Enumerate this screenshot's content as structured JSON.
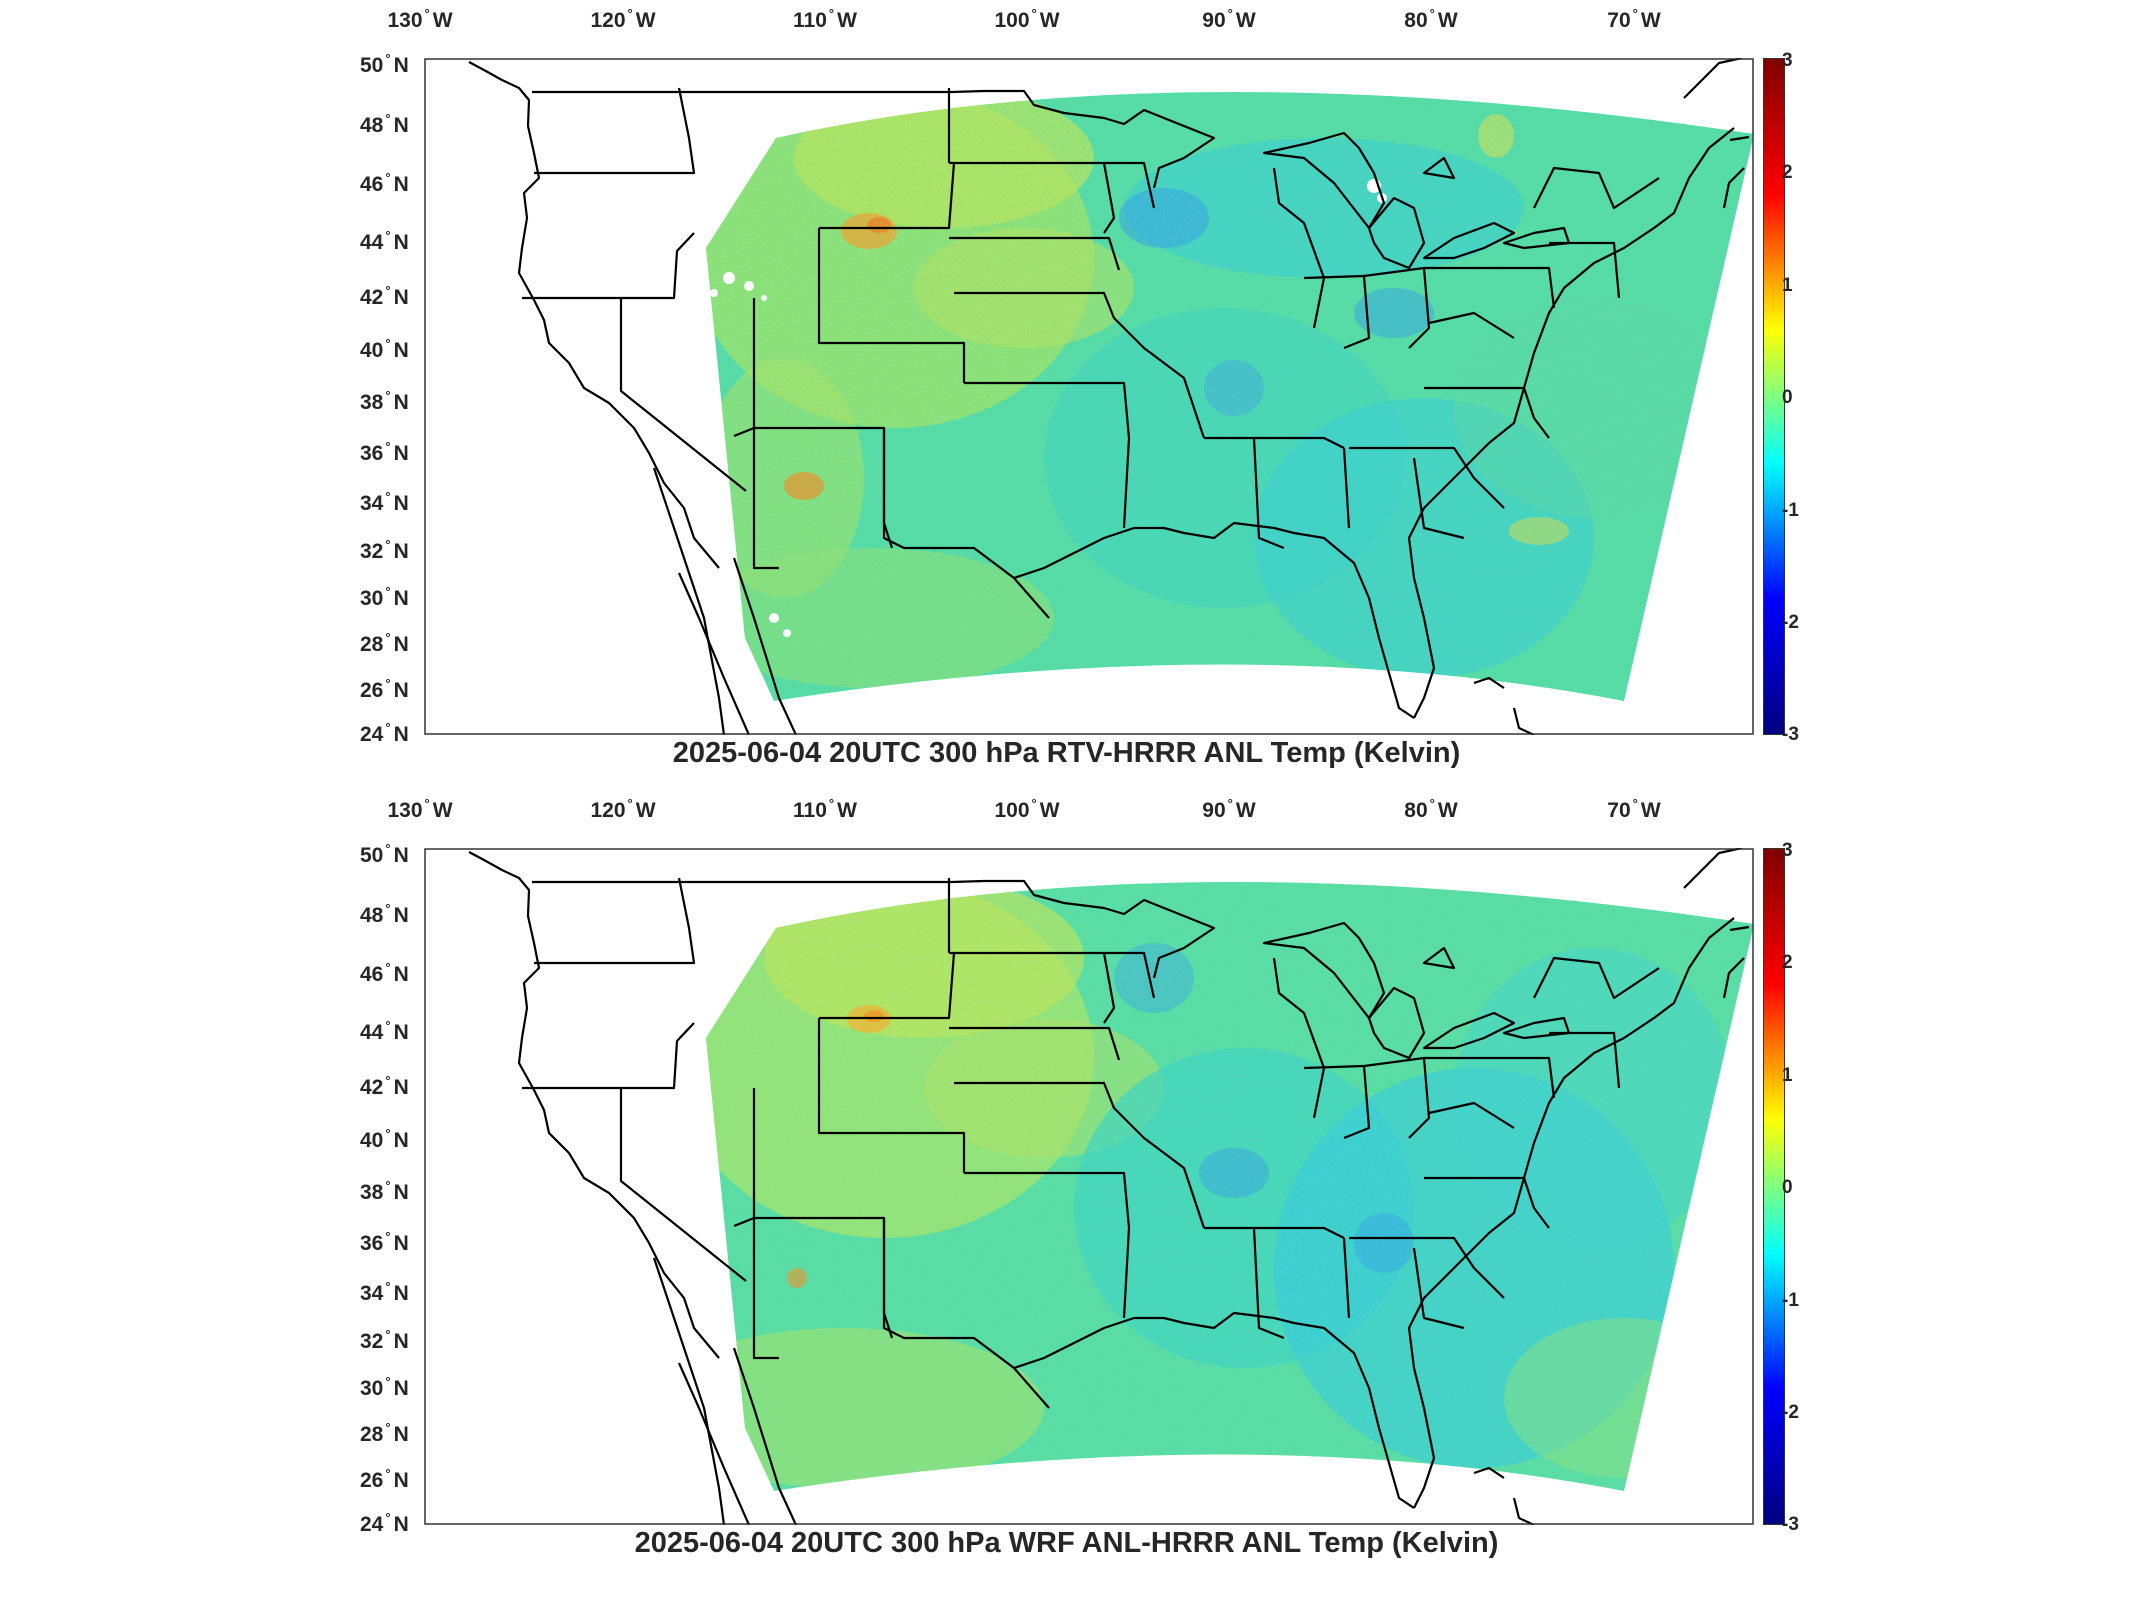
{
  "colors": {
    "ocean_background": "#ffffff",
    "state_lines": "#000000",
    "jet_colormap": [
      "#000080",
      "#0000ff",
      "#00ffff",
      "#ffff00",
      "#ff0000",
      "#800000"
    ]
  },
  "panels": [
    {
      "title": "2025-06-04 20UTC 300 hPa RTV-HRRR ANL Temp (Kelvin)",
      "lon_labels": [
        "130",
        "W",
        "120",
        "W",
        "110",
        "W",
        "100",
        "W",
        "90",
        "W",
        "80",
        "W",
        "70",
        "W"
      ],
      "lat_labels": [
        "50",
        "N",
        "48",
        "N",
        "46",
        "N",
        "44",
        "N",
        "42",
        "N",
        "40",
        "N",
        "38",
        "N",
        "36",
        "N",
        "34",
        "N",
        "32",
        "N",
        "30",
        "N",
        "28",
        "N",
        "26",
        "N",
        "24",
        "N"
      ],
      "colorbar": {
        "colormap": "jet",
        "ticks": [
          "3",
          "2",
          "1",
          "0",
          "-1",
          "-2",
          "-3"
        ],
        "range": [
          -3,
          3
        ]
      }
    },
    {
      "title": "2025-06-04 20UTC 300 hPa WRF ANL-HRRR ANL Temp (Kelvin)",
      "lon_labels": [
        "130",
        "W",
        "120",
        "W",
        "110",
        "W",
        "100",
        "W",
        "90",
        "W",
        "80",
        "W",
        "70",
        "W"
      ],
      "lat_labels": [
        "50",
        "N",
        "48",
        "N",
        "46",
        "N",
        "44",
        "N",
        "42",
        "N",
        "40",
        "N",
        "38",
        "N",
        "36",
        "N",
        "34",
        "N",
        "32",
        "N",
        "30",
        "N",
        "28",
        "N",
        "26",
        "N",
        "24",
        "N"
      ],
      "colorbar": {
        "colormap": "jet",
        "ticks": [
          "3",
          "2",
          "1",
          "0",
          "-1",
          "-2",
          "-3"
        ],
        "range": [
          -3,
          3
        ]
      }
    }
  ]
}
